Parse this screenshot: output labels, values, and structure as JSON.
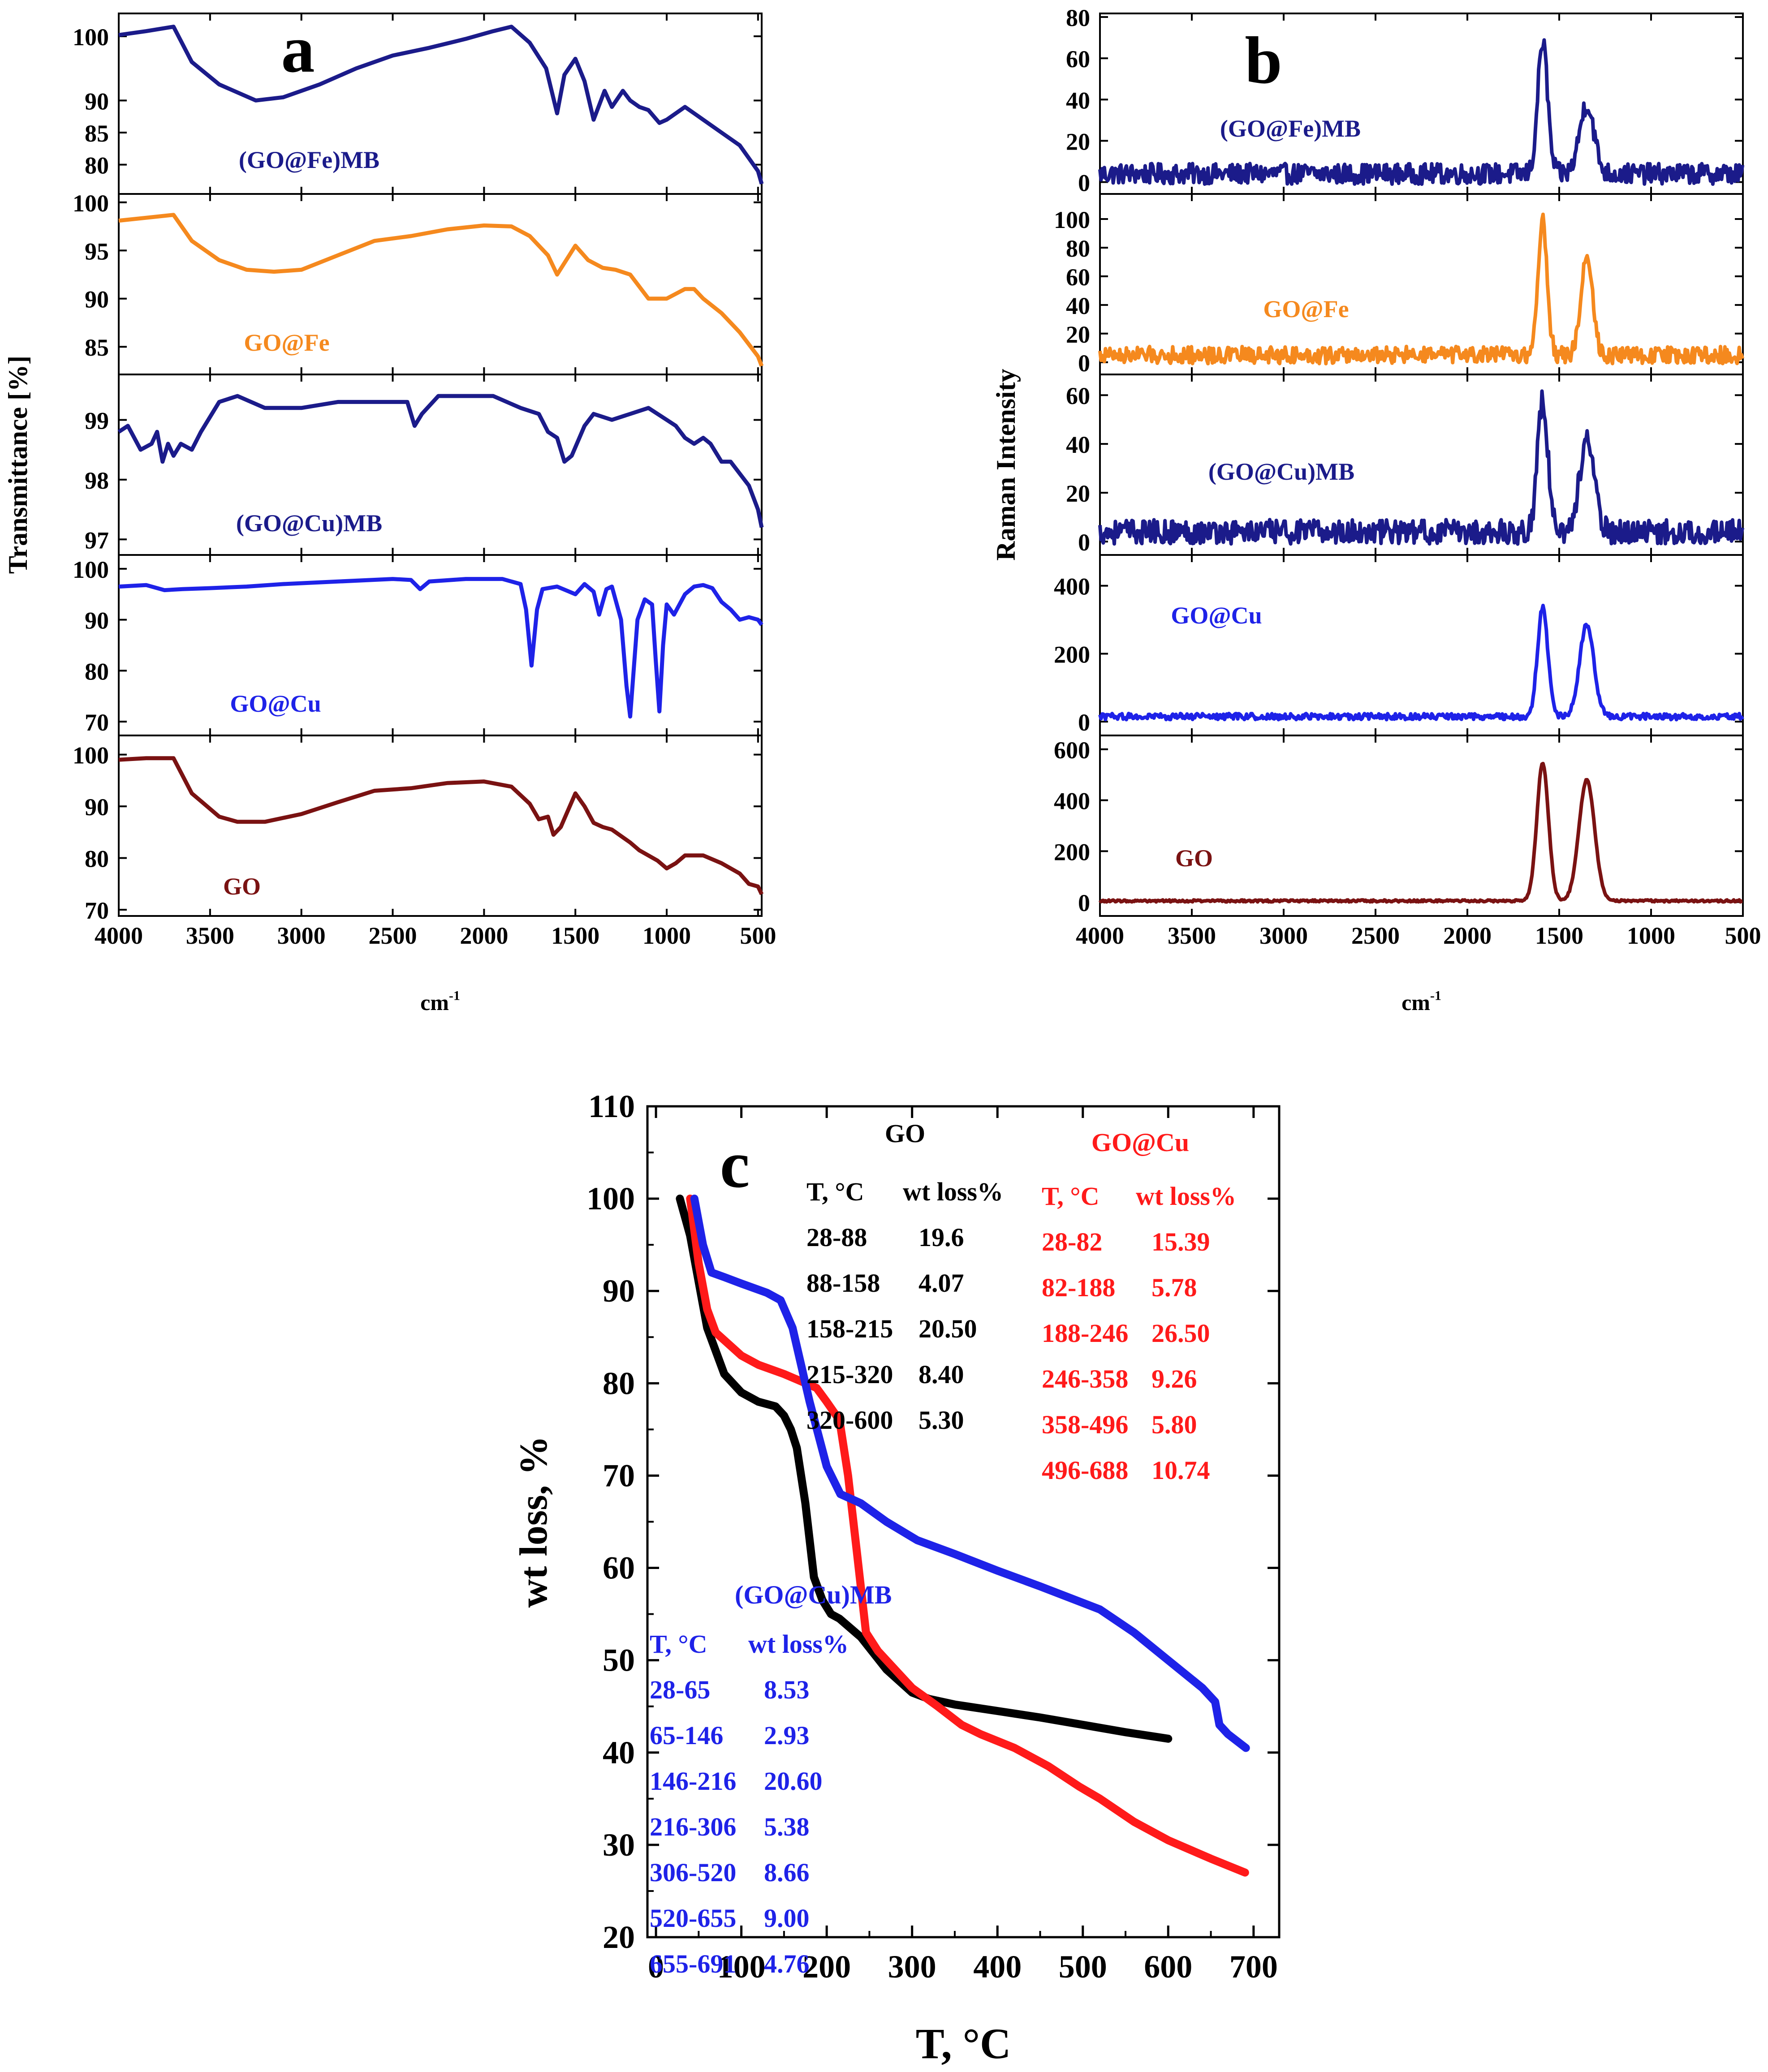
{
  "chart_data": [
    {
      "id": "a",
      "type": "line",
      "panel_label": "a",
      "xlabel": "cm",
      "xlabel_sup": "-1",
      "ylabel": "Transmittance [%]",
      "xlim": [
        4000,
        480
      ],
      "xticks": [
        4000,
        3500,
        3000,
        2500,
        2000,
        1500,
        1000,
        500
      ],
      "stacked": true,
      "series": [
        {
          "name": "(GO@Fe)MB",
          "color": "#1b1b8a",
          "ylim": [
            76,
            103
          ],
          "yticks": [
            80,
            85,
            90,
            100
          ],
          "x": [
            4000,
            3850,
            3700,
            3600,
            3450,
            3250,
            3100,
            2900,
            2700,
            2500,
            2300,
            2100,
            1950,
            1850,
            1750,
            1660,
            1600,
            1560,
            1500,
            1450,
            1400,
            1340,
            1300,
            1240,
            1200,
            1150,
            1100,
            1040,
            1000,
            900,
            850,
            800,
            700,
            600,
            550,
            500,
            480
          ],
          "y": [
            100.2,
            100.8,
            101.5,
            96,
            92.5,
            90,
            90.5,
            92.5,
            95,
            97,
            98.2,
            99.6,
            100.8,
            101.5,
            99,
            95,
            88,
            94,
            96.5,
            93,
            87,
            91.5,
            89,
            91.5,
            90,
            89,
            88.5,
            86.5,
            87,
            89,
            88,
            87,
            85,
            83,
            81,
            79,
            77
          ]
        },
        {
          "name": "GO@Fe",
          "color": "#f5891e",
          "ylim": [
            82.5,
            100.5
          ],
          "yticks": [
            85,
            90,
            95,
            100
          ],
          "x": [
            4000,
            3850,
            3700,
            3600,
            3450,
            3300,
            3150,
            3000,
            2800,
            2600,
            2400,
            2200,
            2000,
            1850,
            1750,
            1650,
            1600,
            1500,
            1430,
            1350,
            1280,
            1200,
            1100,
            1000,
            900,
            850,
            800,
            700,
            600,
            500,
            480
          ],
          "y": [
            98.1,
            98.4,
            98.7,
            96,
            94,
            93,
            92.8,
            93,
            94.5,
            96,
            96.5,
            97.2,
            97.6,
            97.5,
            96.5,
            94.5,
            92.5,
            95.5,
            94,
            93.2,
            93,
            92.5,
            90,
            90,
            91,
            91,
            90,
            88.5,
            86.5,
            84,
            83
          ]
        },
        {
          "name": "(GO@Cu)MB",
          "color": "#1b1b8a",
          "ylim": [
            96.8,
            99.7
          ],
          "yticks": [
            97,
            98,
            99
          ],
          "x": [
            4000,
            3950,
            3880,
            3820,
            3790,
            3760,
            3730,
            3700,
            3660,
            3600,
            3550,
            3450,
            3350,
            3200,
            3000,
            2800,
            2600,
            2420,
            2380,
            2340,
            2250,
            2100,
            1950,
            1800,
            1700,
            1650,
            1600,
            1560,
            1520,
            1450,
            1400,
            1300,
            1200,
            1100,
            1000,
            950,
            900,
            850,
            800,
            760,
            700,
            650,
            600,
            550,
            500,
            480
          ],
          "y": [
            98.8,
            98.9,
            98.5,
            98.6,
            98.8,
            98.3,
            98.6,
            98.4,
            98.6,
            98.5,
            98.8,
            99.3,
            99.4,
            99.2,
            99.2,
            99.3,
            99.3,
            99.3,
            98.9,
            99.1,
            99.4,
            99.4,
            99.4,
            99.2,
            99.1,
            98.8,
            98.7,
            98.3,
            98.4,
            98.9,
            99.1,
            99.0,
            99.1,
            99.2,
            99.0,
            98.9,
            98.7,
            98.6,
            98.7,
            98.6,
            98.3,
            98.3,
            98.1,
            97.9,
            97.5,
            97.2
          ]
        },
        {
          "name": "GO@Cu",
          "color": "#1e22e8",
          "ylim": [
            68,
            102
          ],
          "yticks": [
            70,
            80,
            90,
            100
          ],
          "x": [
            4000,
            3850,
            3750,
            3650,
            3500,
            3300,
            3100,
            2800,
            2500,
            2400,
            2350,
            2300,
            2100,
            1900,
            1800,
            1770,
            1740,
            1710,
            1680,
            1600,
            1500,
            1450,
            1400,
            1370,
            1330,
            1300,
            1250,
            1220,
            1200,
            1160,
            1120,
            1080,
            1060,
            1040,
            1020,
            1000,
            960,
            900,
            850,
            800,
            750,
            700,
            650,
            600,
            550,
            500,
            480
          ],
          "y": [
            96.5,
            96.8,
            95.8,
            96,
            96.2,
            96.5,
            97,
            97.5,
            98,
            97.8,
            96,
            97.5,
            98,
            98,
            97,
            92,
            81,
            92,
            96,
            96.5,
            95,
            97,
            95.5,
            91,
            96,
            96.5,
            90,
            77,
            71,
            90,
            94,
            93,
            82,
            72,
            85,
            93,
            91,
            95,
            96.5,
            96.8,
            96.2,
            93.5,
            92,
            90,
            90.5,
            90,
            89
          ]
        },
        {
          "name": "GO",
          "color": "#7a1212",
          "ylim": [
            69.5,
            103
          ],
          "yticks": [
            70,
            80,
            90,
            100
          ],
          "x": [
            4000,
            3850,
            3700,
            3600,
            3550,
            3450,
            3350,
            3200,
            3000,
            2800,
            2600,
            2400,
            2200,
            2000,
            1850,
            1750,
            1700,
            1650,
            1620,
            1580,
            1500,
            1450,
            1400,
            1350,
            1300,
            1200,
            1150,
            1100,
            1050,
            1000,
            950,
            900,
            800,
            700,
            600,
            550,
            500,
            480
          ],
          "y": [
            99,
            99.3,
            99.3,
            92.5,
            91,
            88,
            87,
            87,
            88.5,
            90.8,
            93,
            93.5,
            94.5,
            94.8,
            93.8,
            90.5,
            87.5,
            88,
            84.5,
            86,
            92.5,
            90,
            86.8,
            86,
            85.5,
            83,
            81.5,
            80.5,
            79.5,
            78,
            79,
            80.5,
            80.5,
            79,
            77,
            75,
            74.5,
            73
          ]
        }
      ]
    },
    {
      "id": "b",
      "type": "line",
      "panel_label": "b",
      "xlabel": "cm",
      "xlabel_sup": "-1",
      "ylabel": "Raman Intensity",
      "xlim": [
        4000,
        500
      ],
      "xticks": [
        4000,
        3500,
        3000,
        2500,
        2000,
        1500,
        1000,
        500
      ],
      "stacked": true,
      "series": [
        {
          "name": "(GO@Fe)MB",
          "color": "#1b1b8a",
          "ylim": [
            -4,
            80
          ],
          "yticks": [
            0,
            20,
            40,
            60,
            80
          ],
          "base": 4,
          "noise": 5,
          "peaks": [
            [
              1590,
              64,
              38
            ],
            [
              1350,
              34,
              55
            ]
          ]
        },
        {
          "name": "GO@Fe",
          "color": "#f5891e",
          "ylim": [
            -6,
            115
          ],
          "yticks": [
            0,
            20,
            40,
            60,
            80,
            100
          ],
          "base": 5,
          "noise": 6,
          "peaks": [
            [
              1590,
              95,
              35
            ],
            [
              1350,
              70,
              45
            ]
          ]
        },
        {
          "name": "(GO@Cu)MB",
          "color": "#1b1b8a",
          "ylim": [
            -4,
            67
          ],
          "yticks": [
            0,
            20,
            40,
            60
          ],
          "base": 4,
          "noise": 5,
          "peaks": [
            [
              1590,
              54,
              40
            ],
            [
              1350,
              38,
              55
            ]
          ]
        },
        {
          "name": "GO@Cu",
          "color": "#1e22e8",
          "ylim": [
            -30,
            480
          ],
          "yticks": [
            0,
            200,
            400
          ],
          "base": 15,
          "noise": 9,
          "peaks": [
            [
              1590,
              320,
              40
            ],
            [
              1350,
              270,
              55
            ]
          ]
        },
        {
          "name": "GO",
          "color": "#7a1212",
          "ylim": [
            -40,
            640
          ],
          "yticks": [
            0,
            200,
            400,
            600
          ],
          "base": 5,
          "noise": 4,
          "peaks": [
            [
              1590,
              540,
              45
            ],
            [
              1350,
              475,
              60
            ]
          ]
        }
      ]
    },
    {
      "id": "c",
      "type": "line",
      "panel_label": "c",
      "xlabel": "T, °C",
      "ylabel": "wt loss, %",
      "xlim": [
        -10,
        730
      ],
      "ylim": [
        20,
        110
      ],
      "xticks": [
        0,
        100,
        200,
        300,
        400,
        500,
        600,
        700
      ],
      "yticks": [
        20,
        30,
        40,
        50,
        60,
        70,
        80,
        90,
        100,
        110
      ],
      "series": [
        {
          "name": "GO",
          "color": "#000000",
          "x": [
            28,
            40,
            60,
            80,
            100,
            120,
            140,
            150,
            158,
            165,
            175,
            185,
            195,
            205,
            215,
            240,
            270,
            300,
            320,
            350,
            400,
            450,
            500,
            550,
            600
          ],
          "y": [
            100,
            96,
            86,
            81,
            79,
            78,
            77.5,
            76.5,
            75,
            73,
            67,
            59,
            56.5,
            55,
            54.5,
            52.5,
            49,
            46.5,
            45.8,
            45.2,
            44.5,
            43.8,
            43,
            42.2,
            41.5
          ]
        },
        {
          "name": "GO@Cu",
          "color": "#ff1a1a",
          "x": [
            40,
            50,
            60,
            70,
            82,
            100,
            120,
            150,
            188,
            200,
            215,
            225,
            235,
            246,
            260,
            280,
            300,
            330,
            358,
            380,
            420,
            460,
            496,
            520,
            560,
            600,
            650,
            690
          ],
          "y": [
            100,
            93,
            88,
            85.5,
            84.5,
            83,
            82,
            81,
            79.5,
            78,
            76,
            70,
            62,
            53,
            51,
            49,
            47,
            45,
            43,
            42,
            40.5,
            38.5,
            36.3,
            35,
            32.5,
            30.5,
            28.5,
            27
          ]
        },
        {
          "name": "(GO@Cu)MB",
          "color": "#1e22e8",
          "x": [
            45,
            55,
            65,
            80,
            100,
            130,
            146,
            160,
            180,
            200,
            216,
            240,
            270,
            306,
            350,
            400,
            450,
            520,
            560,
            600,
            640,
            655,
            660,
            670,
            691
          ],
          "y": [
            100,
            95,
            92,
            91.5,
            90.8,
            89.8,
            89,
            86,
            78,
            71,
            68,
            67,
            65,
            63,
            61.5,
            59.7,
            58,
            55.5,
            53,
            50,
            47,
            45.5,
            43,
            42,
            40.5
          ]
        }
      ],
      "tables": [
        {
          "title": "GO",
          "color": "#000000",
          "header": [
            "T, °C",
            "wt loss%"
          ],
          "rows": [
            [
              "28-88",
              "19.6"
            ],
            [
              "88-158",
              "4.07"
            ],
            [
              "158-215",
              "20.50"
            ],
            [
              "215-320",
              "8.40"
            ],
            [
              "320-600",
              "5.30"
            ]
          ]
        },
        {
          "title": "GO@Cu",
          "color": "#ff1a1a",
          "header": [
            "T, °C",
            "wt loss%"
          ],
          "rows": [
            [
              "28-82",
              "15.39"
            ],
            [
              "82-188",
              "5.78"
            ],
            [
              "188-246",
              "26.50"
            ],
            [
              "246-358",
              "9.26"
            ],
            [
              "358-496",
              "5.80"
            ],
            [
              "496-688",
              "10.74"
            ]
          ]
        },
        {
          "title": "(GO@Cu)MB",
          "color": "#1e22e8",
          "header": [
            "T, °C",
            "wt loss%"
          ],
          "rows": [
            [
              "28-65",
              "8.53"
            ],
            [
              "65-146",
              "2.93"
            ],
            [
              "146-216",
              "20.60"
            ],
            [
              "216-306",
              "5.38"
            ],
            [
              "306-520",
              "8.66"
            ],
            [
              "520-655",
              "9.00"
            ],
            [
              "655-691",
              "4.76"
            ]
          ]
        }
      ]
    }
  ]
}
